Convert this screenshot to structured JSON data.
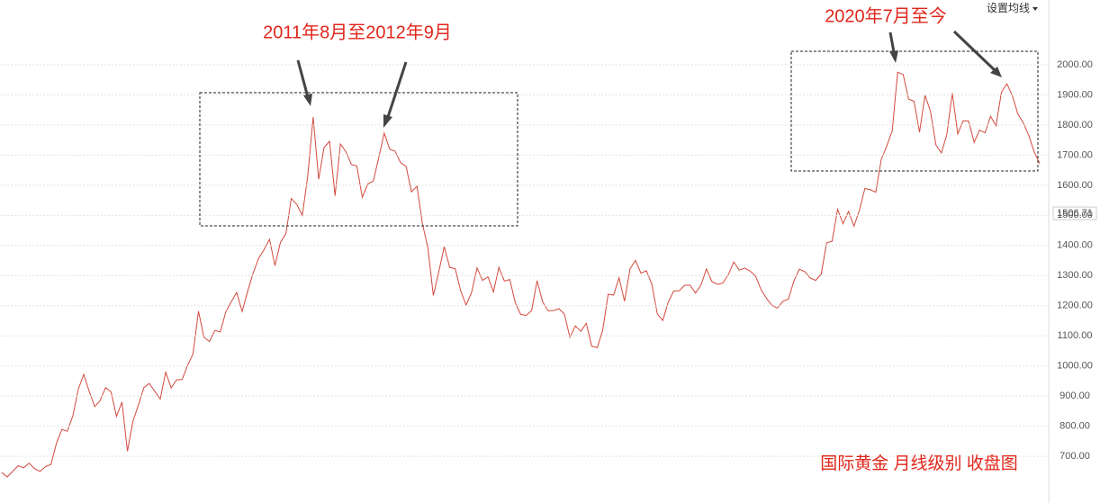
{
  "chart_data": {
    "type": "line",
    "color": "#d24a3e",
    "button": "设置均线",
    "values": [
      646,
      632,
      650,
      669,
      662,
      677,
      659,
      650,
      666,
      673,
      743,
      789,
      783,
      834,
      923,
      972,
      916,
      865,
      885,
      928,
      914,
      833,
      880,
      717,
      815,
      870,
      928,
      942,
      916,
      890,
      979,
      927,
      954,
      955,
      1001,
      1040,
      1182,
      1096,
      1081,
      1118,
      1113,
      1179,
      1213,
      1244,
      1181,
      1248,
      1307,
      1357,
      1386,
      1421,
      1333,
      1410,
      1439,
      1556,
      1536,
      1500,
      1628,
      1826,
      1620,
      1725,
      1746,
      1565,
      1737,
      1711,
      1669,
      1664,
      1560,
      1604,
      1614,
      1691,
      1773,
      1720,
      1713,
      1675,
      1663,
      1578,
      1597,
      1472,
      1393,
      1234,
      1313,
      1396,
      1327,
      1323,
      1250,
      1202,
      1244,
      1326,
      1284,
      1296,
      1246,
      1327,
      1282,
      1287,
      1210,
      1171,
      1168,
      1184,
      1283,
      1213,
      1183,
      1184,
      1190,
      1172,
      1095,
      1133,
      1115,
      1142,
      1065,
      1061,
      1118,
      1238,
      1235,
      1293,
      1215,
      1322,
      1351,
      1308,
      1316,
      1272,
      1173,
      1151,
      1211,
      1249,
      1249,
      1268,
      1268,
      1242,
      1269,
      1322,
      1280,
      1271,
      1275,
      1303,
      1345,
      1318,
      1325,
      1315,
      1298,
      1253,
      1224,
      1201,
      1192,
      1215,
      1222,
      1282,
      1321,
      1313,
      1292,
      1284,
      1305,
      1409,
      1414,
      1520,
      1472,
      1513,
      1464,
      1517,
      1589,
      1585,
      1577,
      1686,
      1730,
      1781,
      1975,
      1968,
      1886,
      1879,
      1776,
      1898,
      1847,
      1734,
      1707,
      1768,
      1906,
      1770,
      1814,
      1813,
      1742,
      1783,
      1774,
      1829,
      1797,
      1909,
      1937,
      1897,
      1837,
      1807,
      1765,
      1711,
      1672
    ],
    "ylim": [
      545,
      2215
    ],
    "yticks": [
      {
        "value": 700,
        "label": "700.00"
      },
      {
        "value": 800,
        "label": "800.00"
      },
      {
        "value": 900,
        "label": "900.00"
      },
      {
        "value": 1000,
        "label": "1000.00"
      },
      {
        "value": 1100,
        "label": "1100.00"
      },
      {
        "value": 1200,
        "label": "1200.00"
      },
      {
        "value": 1300,
        "label": "1300.00"
      },
      {
        "value": 1400,
        "label": "1400.00"
      },
      {
        "value": 1500,
        "label": "1500.00"
      },
      {
        "value": 1600,
        "label": "1600.00"
      },
      {
        "value": 1700,
        "label": "1700.00"
      },
      {
        "value": 1800,
        "label": "1800.00"
      },
      {
        "value": 1900,
        "label": "1900.00"
      },
      {
        "value": 2000,
        "label": "2000.00"
      }
    ],
    "grid": true,
    "price_label": {
      "value": 1506.71,
      "label": "1506.71"
    },
    "annotations": [
      "2011年8月至2012年9月",
      "2020年7月至今",
      "国际黄金  月线级别 收盘图"
    ]
  }
}
